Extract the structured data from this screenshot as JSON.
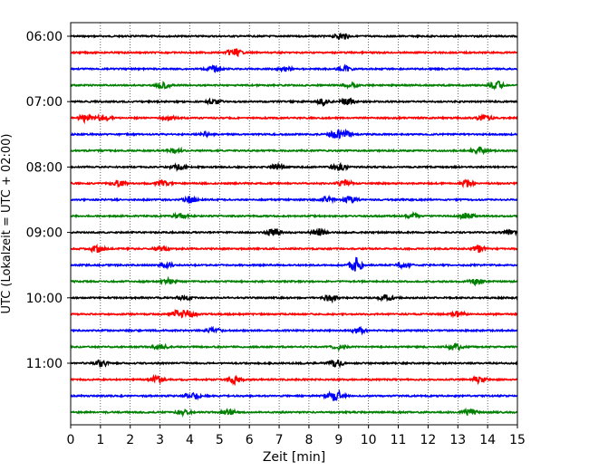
{
  "chart_data": {
    "type": "line",
    "title": "",
    "xlabel": "Zeit  [min]",
    "ylabel": "UTC (Lokalzeit = UTC + 02:00)",
    "xlim": [
      0,
      15
    ],
    "x_ticks": [
      "0",
      "1",
      "2",
      "3",
      "4",
      "5",
      "6",
      "7",
      "8",
      "9",
      "10",
      "11",
      "12",
      "13",
      "14",
      "15"
    ],
    "y_tick_labels": [
      "06:00",
      "07:00",
      "08:00",
      "09:00",
      "10:00",
      "11:00"
    ],
    "grid": "vertical dotted lines at each minute",
    "colors": [
      "#000000",
      "#ff0000",
      "#0000ff",
      "#008000"
    ],
    "traces": [
      {
        "hour": "06:00",
        "color": "#000000",
        "events": [
          [
            9.1,
            0.8
          ]
        ]
      },
      {
        "hour": "06:15",
        "color": "#ff0000",
        "events": [
          [
            5.5,
            1.0
          ]
        ]
      },
      {
        "hour": "06:30",
        "color": "#0000ff",
        "events": [
          [
            4.8,
            0.6
          ],
          [
            7.2,
            0.5
          ],
          [
            9.2,
            0.7
          ]
        ]
      },
      {
        "hour": "06:45",
        "color": "#008000",
        "events": [
          [
            3.1,
            0.7
          ],
          [
            9.4,
            0.6
          ],
          [
            14.3,
            1.0
          ]
        ]
      },
      {
        "hour": "07:00",
        "color": "#000000",
        "events": [
          [
            4.8,
            0.6
          ],
          [
            8.5,
            0.8
          ],
          [
            9.3,
            0.8
          ]
        ]
      },
      {
        "hour": "07:15",
        "color": "#ff0000",
        "events": [
          [
            0.5,
            0.9
          ],
          [
            1.1,
            0.8
          ],
          [
            3.3,
            0.6
          ],
          [
            13.9,
            0.8
          ]
        ]
      },
      {
        "hour": "07:30",
        "color": "#0000ff",
        "events": [
          [
            4.5,
            0.6
          ],
          [
            8.9,
            0.8
          ],
          [
            9.2,
            0.8
          ]
        ]
      },
      {
        "hour": "07:45",
        "color": "#008000",
        "events": [
          [
            3.5,
            0.6
          ],
          [
            13.7,
            0.8
          ]
        ]
      },
      {
        "hour": "08:00",
        "color": "#000000",
        "events": [
          [
            3.6,
            0.6
          ],
          [
            6.9,
            0.7
          ],
          [
            9.0,
            1.0
          ]
        ]
      },
      {
        "hour": "08:15",
        "color": "#ff0000",
        "events": [
          [
            1.6,
            0.8
          ],
          [
            3.1,
            0.7
          ],
          [
            9.2,
            0.8
          ],
          [
            13.3,
            0.8
          ]
        ]
      },
      {
        "hour": "08:30",
        "color": "#0000ff",
        "events": [
          [
            4.0,
            0.8
          ],
          [
            8.6,
            0.7
          ],
          [
            9.4,
            0.8
          ]
        ]
      },
      {
        "hour": "08:45",
        "color": "#008000",
        "events": [
          [
            3.7,
            0.6
          ],
          [
            11.5,
            0.6
          ],
          [
            13.3,
            0.8
          ]
        ]
      },
      {
        "hour": "09:00",
        "color": "#000000",
        "events": [
          [
            6.8,
            0.9
          ],
          [
            8.3,
            0.9
          ],
          [
            14.7,
            0.5
          ]
        ]
      },
      {
        "hour": "09:15",
        "color": "#ff0000",
        "events": [
          [
            0.9,
            0.8
          ],
          [
            3.0,
            0.6
          ],
          [
            13.7,
            0.8
          ]
        ]
      },
      {
        "hour": "09:30",
        "color": "#0000ff",
        "events": [
          [
            3.2,
            0.6
          ],
          [
            9.6,
            1.8
          ],
          [
            11.2,
            0.6
          ]
        ]
      },
      {
        "hour": "09:45",
        "color": "#008000",
        "events": [
          [
            3.3,
            0.6
          ],
          [
            13.6,
            0.8
          ]
        ]
      },
      {
        "hour": "10:00",
        "color": "#000000",
        "events": [
          [
            3.8,
            0.6
          ],
          [
            8.7,
            0.8
          ],
          [
            10.6,
            0.7
          ]
        ]
      },
      {
        "hour": "10:15",
        "color": "#ff0000",
        "events": [
          [
            3.6,
            1.0
          ],
          [
            4.0,
            0.8
          ],
          [
            13.0,
            0.7
          ]
        ]
      },
      {
        "hour": "10:30",
        "color": "#0000ff",
        "events": [
          [
            4.8,
            0.6
          ],
          [
            9.7,
            0.8
          ]
        ]
      },
      {
        "hour": "10:45",
        "color": "#008000",
        "events": [
          [
            3.0,
            0.6
          ],
          [
            9.0,
            0.6
          ],
          [
            12.9,
            0.9
          ]
        ]
      },
      {
        "hour": "11:00",
        "color": "#000000",
        "events": [
          [
            1.0,
            0.9
          ],
          [
            8.9,
            0.9
          ]
        ]
      },
      {
        "hour": "11:15",
        "color": "#ff0000",
        "events": [
          [
            2.9,
            0.8
          ],
          [
            5.5,
            0.9
          ],
          [
            13.7,
            0.8
          ]
        ]
      },
      {
        "hour": "11:30",
        "color": "#0000ff",
        "events": [
          [
            4.1,
            0.8
          ],
          [
            8.8,
            0.8
          ],
          [
            9.0,
            0.7
          ]
        ]
      },
      {
        "hour": "11:45",
        "color": "#008000",
        "events": [
          [
            3.8,
            0.6
          ],
          [
            5.3,
            0.6
          ],
          [
            13.4,
            0.8
          ]
        ]
      }
    ]
  }
}
